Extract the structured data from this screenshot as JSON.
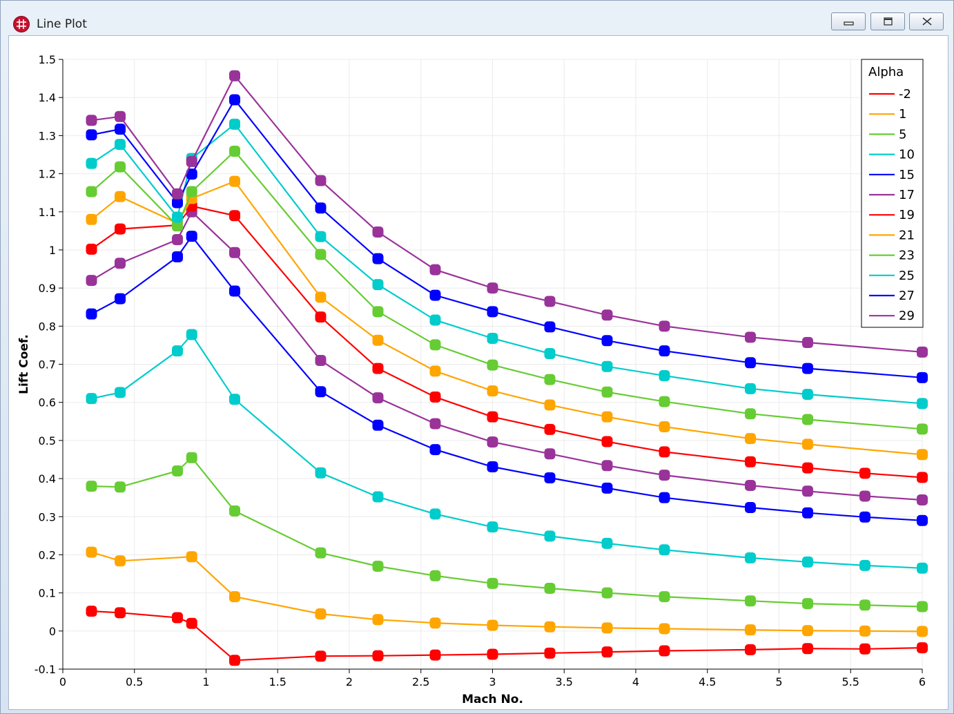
{
  "window": {
    "title": "Line Plot",
    "buttons": {
      "minimize": "minimize-icon",
      "restore": "restore-icon",
      "close": "close-icon"
    }
  },
  "chart_data": {
    "type": "line",
    "xlabel": "Mach No.",
    "ylabel": "Lift Coef.",
    "xlim": [
      0,
      6
    ],
    "ylim": [
      -0.1,
      1.5
    ],
    "xticks": [
      0,
      0.5,
      1,
      1.5,
      2,
      2.5,
      3,
      3.5,
      4,
      4.5,
      5,
      5.5,
      6
    ],
    "xtick_labels": [
      "0",
      "0.5",
      "1",
      "1.5",
      "2",
      "2.5",
      "3",
      "3.5",
      "4",
      "4.5",
      "5",
      "5.5",
      "6"
    ],
    "yticks": [
      -0.1,
      0,
      0.1,
      0.2,
      0.3,
      0.4,
      0.5,
      0.6,
      0.7,
      0.8,
      0.9,
      1,
      1.1,
      1.2,
      1.3,
      1.4,
      1.5
    ],
    "ytick_labels": [
      "-0.1",
      "0",
      "0.1",
      "0.2",
      "0.3",
      "0.4",
      "0.5",
      "0.6",
      "0.7",
      "0.8",
      "0.9",
      "1",
      "1.1",
      "1.2",
      "1.3",
      "1.4",
      "1.5"
    ],
    "grid": true,
    "legend": {
      "title": "Alpha",
      "position": "top-right"
    },
    "series": [
      {
        "name": "-2",
        "color": "#ff0000",
        "x": [
          0.2,
          0.4,
          0.8,
          0.9,
          1.2,
          1.8,
          2.2,
          2.6,
          3.0,
          3.4,
          3.8,
          4.2,
          4.8,
          5.2,
          5.6,
          6.0
        ],
        "y": [
          0.052,
          0.048,
          0.035,
          0.02,
          -0.077,
          -0.066,
          -0.065,
          -0.063,
          -0.061,
          -0.058,
          -0.055,
          -0.052,
          -0.049,
          -0.046,
          -0.047,
          -0.044
        ]
      },
      {
        "name": "1",
        "color": "#ffa500",
        "x": [
          0.2,
          0.4,
          0.9,
          1.2,
          1.8,
          2.2,
          2.6,
          3.0,
          3.4,
          3.8,
          4.2,
          4.8,
          5.2,
          5.6,
          6.0
        ],
        "y": [
          0.207,
          0.184,
          0.195,
          0.09,
          0.045,
          0.03,
          0.021,
          0.015,
          0.011,
          0.008,
          0.006,
          0.003,
          0.001,
          0.0,
          -0.001
        ]
      },
      {
        "name": "5",
        "color": "#66cc33",
        "x": [
          0.2,
          0.4,
          0.8,
          0.9,
          1.2,
          1.8,
          2.2,
          2.6,
          3.0,
          3.4,
          3.8,
          4.2,
          4.8,
          5.2,
          5.6,
          6.0
        ],
        "y": [
          0.38,
          0.378,
          0.42,
          0.455,
          0.315,
          0.205,
          0.17,
          0.145,
          0.125,
          0.112,
          0.1,
          0.09,
          0.079,
          0.072,
          0.068,
          0.064
        ]
      },
      {
        "name": "10",
        "color": "#00cccc",
        "x": [
          0.2,
          0.4,
          0.8,
          0.9,
          1.2,
          1.8,
          2.2,
          2.6,
          3.0,
          3.4,
          3.8,
          4.2,
          4.8,
          5.2,
          5.6,
          6.0
        ],
        "y": [
          0.61,
          0.626,
          0.735,
          0.778,
          0.608,
          0.415,
          0.352,
          0.307,
          0.273,
          0.249,
          0.23,
          0.213,
          0.192,
          0.181,
          0.172,
          0.165
        ]
      },
      {
        "name": "15",
        "color": "#0000ff",
        "x": [
          0.2,
          0.4,
          0.8,
          0.9,
          1.2,
          1.8,
          2.2,
          2.6,
          3.0,
          3.4,
          3.8,
          4.2,
          4.8,
          5.2,
          5.6,
          6.0
        ],
        "y": [
          0.832,
          0.872,
          0.982,
          1.036,
          0.892,
          0.628,
          0.54,
          0.476,
          0.431,
          0.402,
          0.375,
          0.35,
          0.324,
          0.31,
          0.299,
          0.29
        ]
      },
      {
        "name": "17",
        "color": "#993399",
        "x": [
          0.2,
          0.4,
          0.8,
          0.9,
          1.2,
          1.8,
          2.2,
          2.6,
          3.0,
          3.4,
          3.8,
          4.2,
          4.8,
          5.2,
          5.6,
          6.0
        ],
        "y": [
          0.92,
          0.965,
          1.027,
          1.1,
          0.993,
          0.71,
          0.612,
          0.544,
          0.496,
          0.465,
          0.434,
          0.409,
          0.382,
          0.367,
          0.354,
          0.344
        ]
      },
      {
        "name": "19",
        "color": "#ff0000",
        "x": [
          0.2,
          0.4,
          0.8,
          0.9,
          1.2,
          1.8,
          2.2,
          2.6,
          3.0,
          3.4,
          3.8,
          4.2,
          4.8,
          5.2,
          5.6,
          6.0
        ],
        "y": [
          1.002,
          1.055,
          1.065,
          1.115,
          1.09,
          0.824,
          0.689,
          0.614,
          0.562,
          0.529,
          0.497,
          0.47,
          0.444,
          0.428,
          0.414,
          0.403
        ]
      },
      {
        "name": "21",
        "color": "#ffa500",
        "x": [
          0.2,
          0.4,
          0.8,
          0.9,
          1.2,
          1.8,
          2.2,
          2.6,
          3.0,
          3.4,
          3.8,
          4.2,
          4.8,
          5.2,
          6.0
        ],
        "y": [
          1.08,
          1.14,
          1.07,
          1.135,
          1.18,
          0.876,
          0.763,
          0.682,
          0.63,
          0.593,
          0.562,
          0.536,
          0.505,
          0.49,
          0.463
        ]
      },
      {
        "name": "23",
        "color": "#66cc33",
        "x": [
          0.2,
          0.4,
          0.8,
          0.9,
          1.2,
          1.8,
          2.2,
          2.6,
          3.0,
          3.4,
          3.8,
          4.2,
          4.8,
          5.2,
          6.0
        ],
        "y": [
          1.153,
          1.218,
          1.063,
          1.153,
          1.259,
          0.988,
          0.838,
          0.751,
          0.698,
          0.66,
          0.627,
          0.602,
          0.57,
          0.555,
          0.53
        ]
      },
      {
        "name": "25",
        "color": "#00cccc",
        "x": [
          0.2,
          0.4,
          0.8,
          0.9,
          1.2,
          1.8,
          2.2,
          2.6,
          3.0,
          3.4,
          3.8,
          4.2,
          4.8,
          5.2,
          6.0
        ],
        "y": [
          1.227,
          1.277,
          1.086,
          1.24,
          1.33,
          1.035,
          0.909,
          0.816,
          0.768,
          0.728,
          0.694,
          0.67,
          0.636,
          0.621,
          0.597
        ]
      },
      {
        "name": "27",
        "color": "#0000ff",
        "x": [
          0.2,
          0.4,
          0.8,
          0.9,
          1.2,
          1.8,
          2.2,
          2.6,
          3.0,
          3.4,
          3.8,
          4.2,
          4.8,
          5.2,
          6.0
        ],
        "y": [
          1.302,
          1.317,
          1.124,
          1.199,
          1.394,
          1.11,
          0.977,
          0.881,
          0.838,
          0.798,
          0.762,
          0.735,
          0.704,
          0.689,
          0.665
        ]
      },
      {
        "name": "29",
        "color": "#993399",
        "x": [
          0.2,
          0.4,
          0.8,
          0.9,
          1.2,
          1.8,
          2.2,
          2.6,
          3.0,
          3.4,
          3.8,
          4.2,
          4.8,
          5.2,
          6.0
        ],
        "y": [
          1.34,
          1.35,
          1.147,
          1.232,
          1.457,
          1.182,
          1.047,
          0.948,
          0.9,
          0.865,
          0.829,
          0.8,
          0.771,
          0.757,
          0.732
        ]
      }
    ]
  }
}
